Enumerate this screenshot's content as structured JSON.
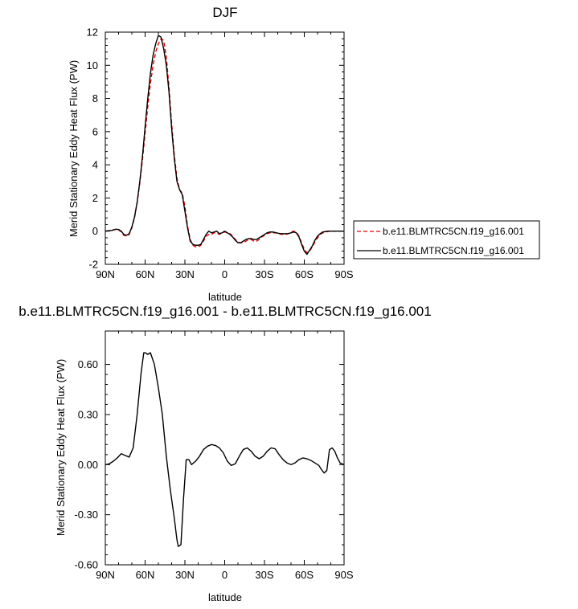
{
  "chart_data": [
    {
      "type": "line",
      "title": "DJF",
      "xlabel": "latitude",
      "ylabel": "Merid Stationary Eddy Heat Flux (PW)",
      "xlim": [
        90,
        -90
      ],
      "ylim": [
        -2,
        12
      ],
      "xticks": [
        90,
        60,
        30,
        0,
        -30,
        -60,
        -90
      ],
      "xtick_labels": [
        "90N",
        "60N",
        "30N",
        "0",
        "30S",
        "60S",
        "90S"
      ],
      "yticks": [
        -2,
        0,
        2,
        4,
        6,
        8,
        10,
        12
      ],
      "ytick_labels": [
        "-2",
        "0",
        "2",
        "4",
        "6",
        "8",
        "10",
        "12"
      ],
      "legend": {
        "placement": "right"
      },
      "series": [
        {
          "name": "b.e11.BLMTRC5CN.f19_g16.001",
          "color": "#e00000",
          "dash": "dashed",
          "x": [
            90,
            85,
            82,
            80,
            78,
            76,
            74,
            72,
            70,
            68,
            66,
            64,
            62,
            60,
            58,
            56,
            54,
            52,
            50,
            48,
            46,
            44,
            42,
            40,
            38,
            36,
            34,
            32,
            30,
            28,
            26,
            24,
            22,
            20,
            18,
            16,
            14,
            12,
            10,
            8,
            6,
            4,
            2,
            0,
            -2,
            -4,
            -6,
            -8,
            -10,
            -12,
            -14,
            -16,
            -18,
            -20,
            -22,
            -24,
            -26,
            -28,
            -30,
            -32,
            -34,
            -36,
            -38,
            -40,
            -42,
            -44,
            -46,
            -48,
            -50,
            -52,
            -54,
            -56,
            -58,
            -60,
            -62,
            -64,
            -66,
            -68,
            -70,
            -72,
            -74,
            -76,
            -78,
            -80,
            -82,
            -84,
            -86,
            -88,
            -90
          ],
          "values": [
            0,
            0.05,
            0.1,
            0.08,
            -0.05,
            -0.25,
            -0.3,
            -0.2,
            0.2,
            0.8,
            1.7,
            2.9,
            4.3,
            5.9,
            7.5,
            8.9,
            10.0,
            10.8,
            11.3,
            11.6,
            11.5,
            10.5,
            8.7,
            6.5,
            4.6,
            3.2,
            2.5,
            2.3,
            1.5,
            0.3,
            -0.5,
            -0.85,
            -0.95,
            -0.95,
            -0.85,
            -0.6,
            -0.3,
            -0.2,
            -0.2,
            -0.1,
            -0.1,
            -0.2,
            -0.1,
            -0.05,
            -0.1,
            -0.15,
            -0.3,
            -0.5,
            -0.65,
            -0.7,
            -0.7,
            -0.6,
            -0.5,
            -0.5,
            -0.6,
            -0.6,
            -0.5,
            -0.35,
            -0.25,
            -0.15,
            -0.1,
            -0.1,
            -0.1,
            -0.12,
            -0.18,
            -0.2,
            -0.2,
            -0.15,
            -0.05,
            0,
            -0.05,
            -0.3,
            -0.7,
            -1.1,
            -1.3,
            -1.2,
            -0.95,
            -0.65,
            -0.4,
            -0.2,
            -0.1,
            -0.05,
            -0.02,
            0,
            0,
            0,
            0,
            0,
            0
          ]
        },
        {
          "name": "b.e11.BLMTRC5CN.f19_g16.001",
          "color": "#000000",
          "dash": "solid",
          "x": [
            90,
            85,
            82,
            80,
            78,
            76,
            74,
            72,
            70,
            68,
            66,
            64,
            62,
            60,
            58,
            56,
            54,
            52,
            50,
            48,
            46,
            44,
            42,
            40,
            38,
            36,
            34,
            32,
            30,
            28,
            26,
            24,
            22,
            20,
            18,
            16,
            14,
            12,
            10,
            8,
            6,
            4,
            2,
            0,
            -2,
            -4,
            -6,
            -8,
            -10,
            -12,
            -14,
            -16,
            -18,
            -20,
            -22,
            -24,
            -26,
            -28,
            -30,
            -32,
            -34,
            -36,
            -38,
            -40,
            -42,
            -44,
            -46,
            -48,
            -50,
            -52,
            -54,
            -56,
            -58,
            -60,
            -62,
            -64,
            -66,
            -68,
            -70,
            -72,
            -74,
            -76,
            -78,
            -80,
            -82,
            -84,
            -86,
            -88,
            -90
          ],
          "values": [
            0,
            0.05,
            0.12,
            0.1,
            0,
            -0.2,
            -0.25,
            -0.15,
            0.25,
            0.85,
            1.75,
            3.0,
            4.5,
            6.3,
            8.0,
            9.5,
            10.6,
            11.3,
            11.8,
            11.7,
            11.0,
            10.0,
            8.4,
            6.2,
            4.4,
            3.0,
            2.5,
            2.2,
            1.2,
            0.2,
            -0.6,
            -0.8,
            -0.85,
            -0.85,
            -0.8,
            -0.5,
            -0.2,
            0,
            -0.1,
            -0.05,
            0,
            -0.15,
            -0.1,
            0,
            -0.1,
            -0.2,
            -0.35,
            -0.55,
            -0.7,
            -0.7,
            -0.6,
            -0.5,
            -0.45,
            -0.45,
            -0.5,
            -0.5,
            -0.4,
            -0.3,
            -0.2,
            -0.1,
            -0.05,
            -0.05,
            -0.08,
            -0.12,
            -0.15,
            -0.15,
            -0.15,
            -0.15,
            -0.1,
            -0.05,
            -0.1,
            -0.35,
            -0.8,
            -1.2,
            -1.4,
            -1.15,
            -0.9,
            -0.55,
            -0.3,
            -0.15,
            -0.05,
            -0.02,
            0,
            0,
            0,
            0,
            0,
            0,
            0
          ]
        }
      ]
    },
    {
      "type": "line",
      "title": "b.e11.BLMTRC5CN.f19_g16.001 - b.e11.BLMTRC5CN.f19_g16.001",
      "xlabel": "latitude",
      "ylabel": "Merid Stationary Eddy Heat Flux (PW)",
      "xlim": [
        90,
        -90
      ],
      "ylim": [
        -0.6,
        0.8
      ],
      "xticks": [
        90,
        60,
        30,
        0,
        -30,
        -60,
        -90
      ],
      "xtick_labels": [
        "90N",
        "60N",
        "30N",
        "0",
        "30S",
        "60S",
        "90S"
      ],
      "yticks": [
        -0.6,
        -0.3,
        0,
        0.3,
        0.6
      ],
      "ytick_labels": [
        "-0.60",
        "-0.30",
        "0.00",
        "0.30",
        "0.60"
      ],
      "series": [
        {
          "color": "#000000",
          "dash": "solid",
          "x": [
            90,
            87,
            84,
            81,
            78,
            75,
            72,
            69,
            66,
            63,
            61,
            60,
            58,
            56,
            53,
            50,
            47,
            44,
            41,
            38,
            36,
            35,
            33,
            31,
            29,
            27,
            25,
            22,
            19,
            16,
            13,
            10,
            7,
            4,
            1,
            -2,
            -5,
            -8,
            -11,
            -14,
            -17,
            -20,
            -23,
            -26,
            -29,
            -32,
            -35,
            -38,
            -41,
            -44,
            -47,
            -50,
            -53,
            -56,
            -59,
            -62,
            -65,
            -68,
            -71,
            -73,
            -75,
            -77,
            -79,
            -81,
            -83,
            -85,
            -87,
            -90
          ],
          "values": [
            0,
            0.005,
            0.02,
            0.04,
            0.065,
            0.055,
            0.045,
            0.1,
            0.3,
            0.55,
            0.67,
            0.67,
            0.66,
            0.67,
            0.6,
            0.46,
            0.3,
            0.05,
            -0.15,
            -0.32,
            -0.45,
            -0.49,
            -0.48,
            -0.2,
            0.03,
            0.03,
            0.0,
            0.02,
            0.05,
            0.09,
            0.11,
            0.12,
            0.115,
            0.1,
            0.07,
            0.02,
            -0.005,
            0.005,
            0.05,
            0.09,
            0.1,
            0.08,
            0.05,
            0.035,
            0.05,
            0.08,
            0.1,
            0.095,
            0.06,
            0.03,
            0.01,
            0.0,
            0.01,
            0.03,
            0.04,
            0.035,
            0.025,
            0.01,
            -0.005,
            -0.03,
            -0.05,
            -0.035,
            0.09,
            0.1,
            0.08,
            0.04,
            0.01,
            0
          ]
        }
      ]
    }
  ]
}
